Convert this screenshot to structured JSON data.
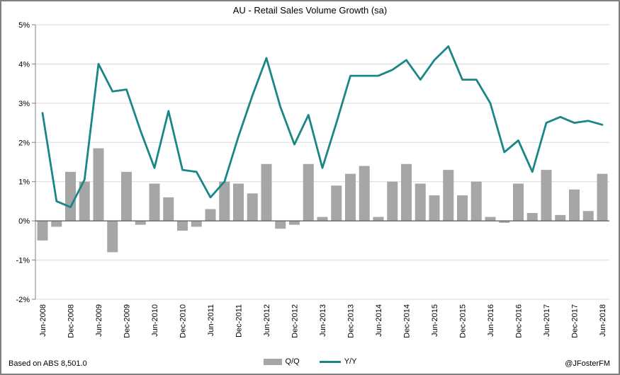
{
  "header": {
    "title": "AU - Retail Sales Volume Growth (sa)"
  },
  "footer": {
    "source": "Based on ABS 8,501.0",
    "handle": "@JFosterFM"
  },
  "colors": {
    "bar": "#a6a6a6",
    "line": "#1a8685",
    "gridline": "#d9d9d9",
    "axis": "#808080",
    "zero_axis": "#666666",
    "text": "#000000"
  },
  "chart_data": {
    "type": "bar",
    "subtype": "bar+line combo",
    "title": "AU - Retail Sales Volume Growth (sa)",
    "ylabel": "",
    "xlabel": "",
    "ylim": [
      -2,
      5
    ],
    "yticks": [
      5,
      4,
      3,
      2,
      1,
      0,
      -1,
      -2
    ],
    "ytick_suffix": "%",
    "grid": "horizontal gridlines on",
    "legend_position": "bottom center",
    "x_tick_note": "every second quarter labeled (Jun and Dec), labels rotated 90",
    "x": [
      "Jun-2008",
      "Sep-2008",
      "Dec-2008",
      "Mar-2009",
      "Jun-2009",
      "Sep-2009",
      "Dec-2009",
      "Mar-2010",
      "Jun-2010",
      "Sep-2010",
      "Dec-2010",
      "Mar-2011",
      "Jun-2011",
      "Sep-2011",
      "Dec-2011",
      "Mar-2012",
      "Jun-2012",
      "Sep-2012",
      "Dec-2012",
      "Mar-2013",
      "Jun-2013",
      "Sep-2013",
      "Dec-2013",
      "Mar-2014",
      "Jun-2014",
      "Sep-2014",
      "Dec-2014",
      "Mar-2015",
      "Jun-2015",
      "Sep-2015",
      "Dec-2015",
      "Mar-2016",
      "Jun-2016",
      "Sep-2016",
      "Dec-2016",
      "Mar-2017",
      "Jun-2017",
      "Sep-2017",
      "Dec-2017",
      "Mar-2018",
      "Jun-2018"
    ],
    "series": [
      {
        "name": "Q/Q",
        "type": "bar",
        "color": "#a6a6a6",
        "values": [
          -0.5,
          -0.15,
          1.25,
          1.0,
          1.85,
          -0.8,
          1.25,
          -0.1,
          0.95,
          0.6,
          -0.25,
          -0.15,
          0.3,
          1.0,
          0.95,
          0.7,
          1.45,
          -0.2,
          -0.1,
          1.45,
          0.1,
          0.9,
          1.2,
          1.4,
          0.1,
          1.0,
          1.45,
          0.95,
          0.65,
          1.3,
          0.65,
          1.0,
          0.1,
          -0.05,
          0.95,
          0.2,
          1.3,
          0.15,
          0.8,
          0.25,
          1.2
        ]
      },
      {
        "name": "Y/Y",
        "type": "line",
        "color": "#1a8685",
        "values": [
          2.75,
          0.5,
          0.35,
          1.05,
          4.0,
          3.3,
          3.35,
          2.3,
          1.35,
          2.8,
          1.3,
          1.25,
          0.6,
          1.0,
          2.15,
          3.2,
          4.15,
          2.9,
          1.95,
          2.7,
          1.35,
          2.5,
          3.7,
          3.7,
          3.7,
          3.85,
          4.1,
          3.6,
          4.1,
          4.45,
          3.6,
          3.6,
          3.0,
          1.75,
          2.05,
          1.25,
          2.5,
          2.65,
          2.5,
          2.55,
          2.45
        ]
      }
    ]
  }
}
